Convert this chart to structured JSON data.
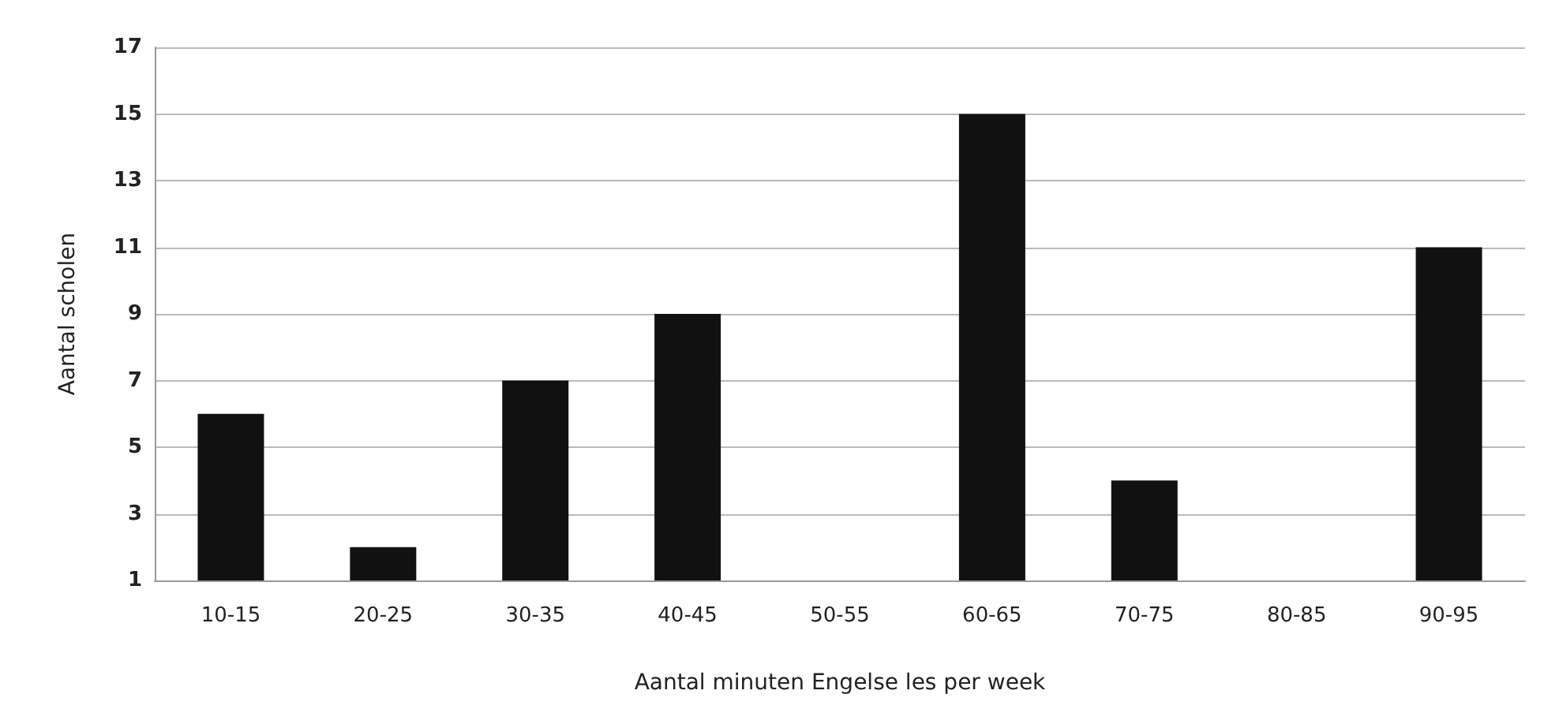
{
  "chart_data": {
    "type": "bar",
    "xlabel": "Aantal minuten Engelse les per week",
    "ylabel": "Aantal scholen",
    "categories": [
      "10-15",
      "20-25",
      "30-35",
      "40-45",
      "50-55",
      "60-65",
      "70-75",
      "80-85",
      "90-95"
    ],
    "values": [
      6,
      2,
      7,
      9,
      1,
      15,
      4,
      1,
      11
    ],
    "color": "#111111",
    "ylim": [
      1,
      17
    ],
    "yticks": [
      1,
      3,
      5,
      7,
      9,
      11,
      13,
      15,
      17
    ],
    "grid": "y"
  }
}
